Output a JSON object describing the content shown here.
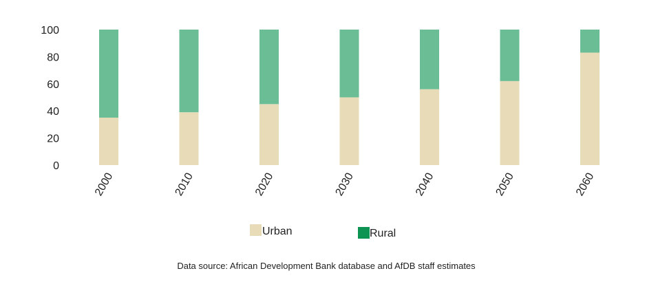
{
  "chart_data": {
    "type": "bar",
    "stacked": true,
    "categories": [
      "2000",
      "2010",
      "2020",
      "2030",
      "2040",
      "2050",
      "2060"
    ],
    "series": [
      {
        "name": "Urban",
        "values": [
          35,
          39,
          45,
          50,
          56,
          62,
          83
        ],
        "color": "#e8dcb8"
      },
      {
        "name": "Rural",
        "values": [
          65,
          61,
          55,
          50,
          44,
          38,
          17
        ],
        "color": "#6bbd96"
      }
    ],
    "legend_swatch_colors": {
      "Urban": "#e8dcb8",
      "Rural": "#0d9452"
    },
    "ylim": [
      0,
      100
    ],
    "yticks": [
      0,
      20,
      40,
      60,
      80,
      100
    ],
    "grid": false,
    "legend_position": "bottom",
    "xlabel": "",
    "ylabel": "",
    "title": "",
    "source": "Data source: African Development Bank database and AfDB staff estimates"
  }
}
